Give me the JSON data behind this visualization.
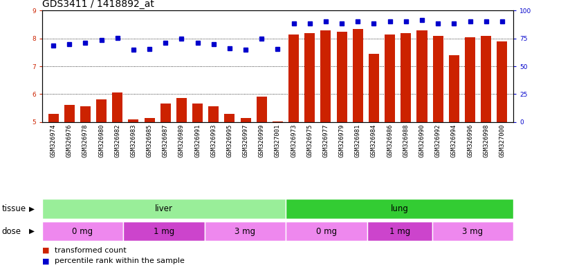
{
  "title": "GDS3411 / 1418892_at",
  "samples": [
    "GSM326974",
    "GSM326976",
    "GSM326978",
    "GSM326980",
    "GSM326982",
    "GSM326983",
    "GSM326985",
    "GSM326987",
    "GSM326989",
    "GSM326991",
    "GSM326993",
    "GSM326995",
    "GSM326997",
    "GSM326999",
    "GSM327001",
    "GSM326973",
    "GSM326975",
    "GSM326977",
    "GSM326979",
    "GSM326981",
    "GSM326984",
    "GSM326986",
    "GSM326988",
    "GSM326990",
    "GSM326992",
    "GSM326994",
    "GSM326996",
    "GSM326998",
    "GSM327000"
  ],
  "bar_values": [
    5.3,
    5.6,
    5.55,
    5.8,
    6.05,
    5.1,
    5.15,
    5.65,
    5.85,
    5.65,
    5.55,
    5.3,
    5.15,
    5.9,
    5.02,
    8.15,
    8.2,
    8.3,
    8.25,
    8.35,
    7.45,
    8.15,
    8.2,
    8.3,
    8.1,
    7.4,
    8.05,
    8.1,
    7.9
  ],
  "dot_values": [
    7.75,
    7.8,
    7.85,
    7.95,
    8.02,
    7.6,
    7.62,
    7.85,
    7.98,
    7.85,
    7.8,
    7.65,
    7.6,
    8.0,
    7.62,
    8.55,
    8.55,
    8.6,
    8.55,
    8.62,
    8.55,
    8.6,
    8.6,
    8.65,
    8.55,
    8.55,
    8.6,
    8.6,
    8.6
  ],
  "bar_color": "#cc2200",
  "dot_color": "#0000cc",
  "ylim_left": [
    5,
    9
  ],
  "ylim_right": [
    0,
    100
  ],
  "yticks_left": [
    5,
    6,
    7,
    8,
    9
  ],
  "yticks_right": [
    0,
    25,
    50,
    75,
    100
  ],
  "hgrid_pct": [
    25,
    50,
    75,
    100
  ],
  "tissue_groups": [
    {
      "label": "liver",
      "start": 0,
      "end": 15,
      "color": "#99ee99"
    },
    {
      "label": "lung",
      "start": 15,
      "end": 29,
      "color": "#33cc33"
    }
  ],
  "dose_groups": [
    {
      "label": "0 mg",
      "start": 0,
      "end": 5,
      "color": "#ee88ee"
    },
    {
      "label": "1 mg",
      "start": 5,
      "end": 10,
      "color": "#cc44cc"
    },
    {
      "label": "3 mg",
      "start": 10,
      "end": 15,
      "color": "#ee88ee"
    },
    {
      "label": "0 mg",
      "start": 15,
      "end": 20,
      "color": "#ee88ee"
    },
    {
      "label": "1 mg",
      "start": 20,
      "end": 24,
      "color": "#cc44cc"
    },
    {
      "label": "3 mg",
      "start": 24,
      "end": 29,
      "color": "#ee88ee"
    }
  ],
  "legend_items": [
    {
      "label": "transformed count",
      "color": "#cc2200"
    },
    {
      "label": "percentile rank within the sample",
      "color": "#0000cc"
    }
  ],
  "bg_color": "#ffffff",
  "title_fontsize": 10,
  "tick_fontsize": 6.5,
  "band_fontsize": 8.5,
  "legend_fontsize": 8
}
